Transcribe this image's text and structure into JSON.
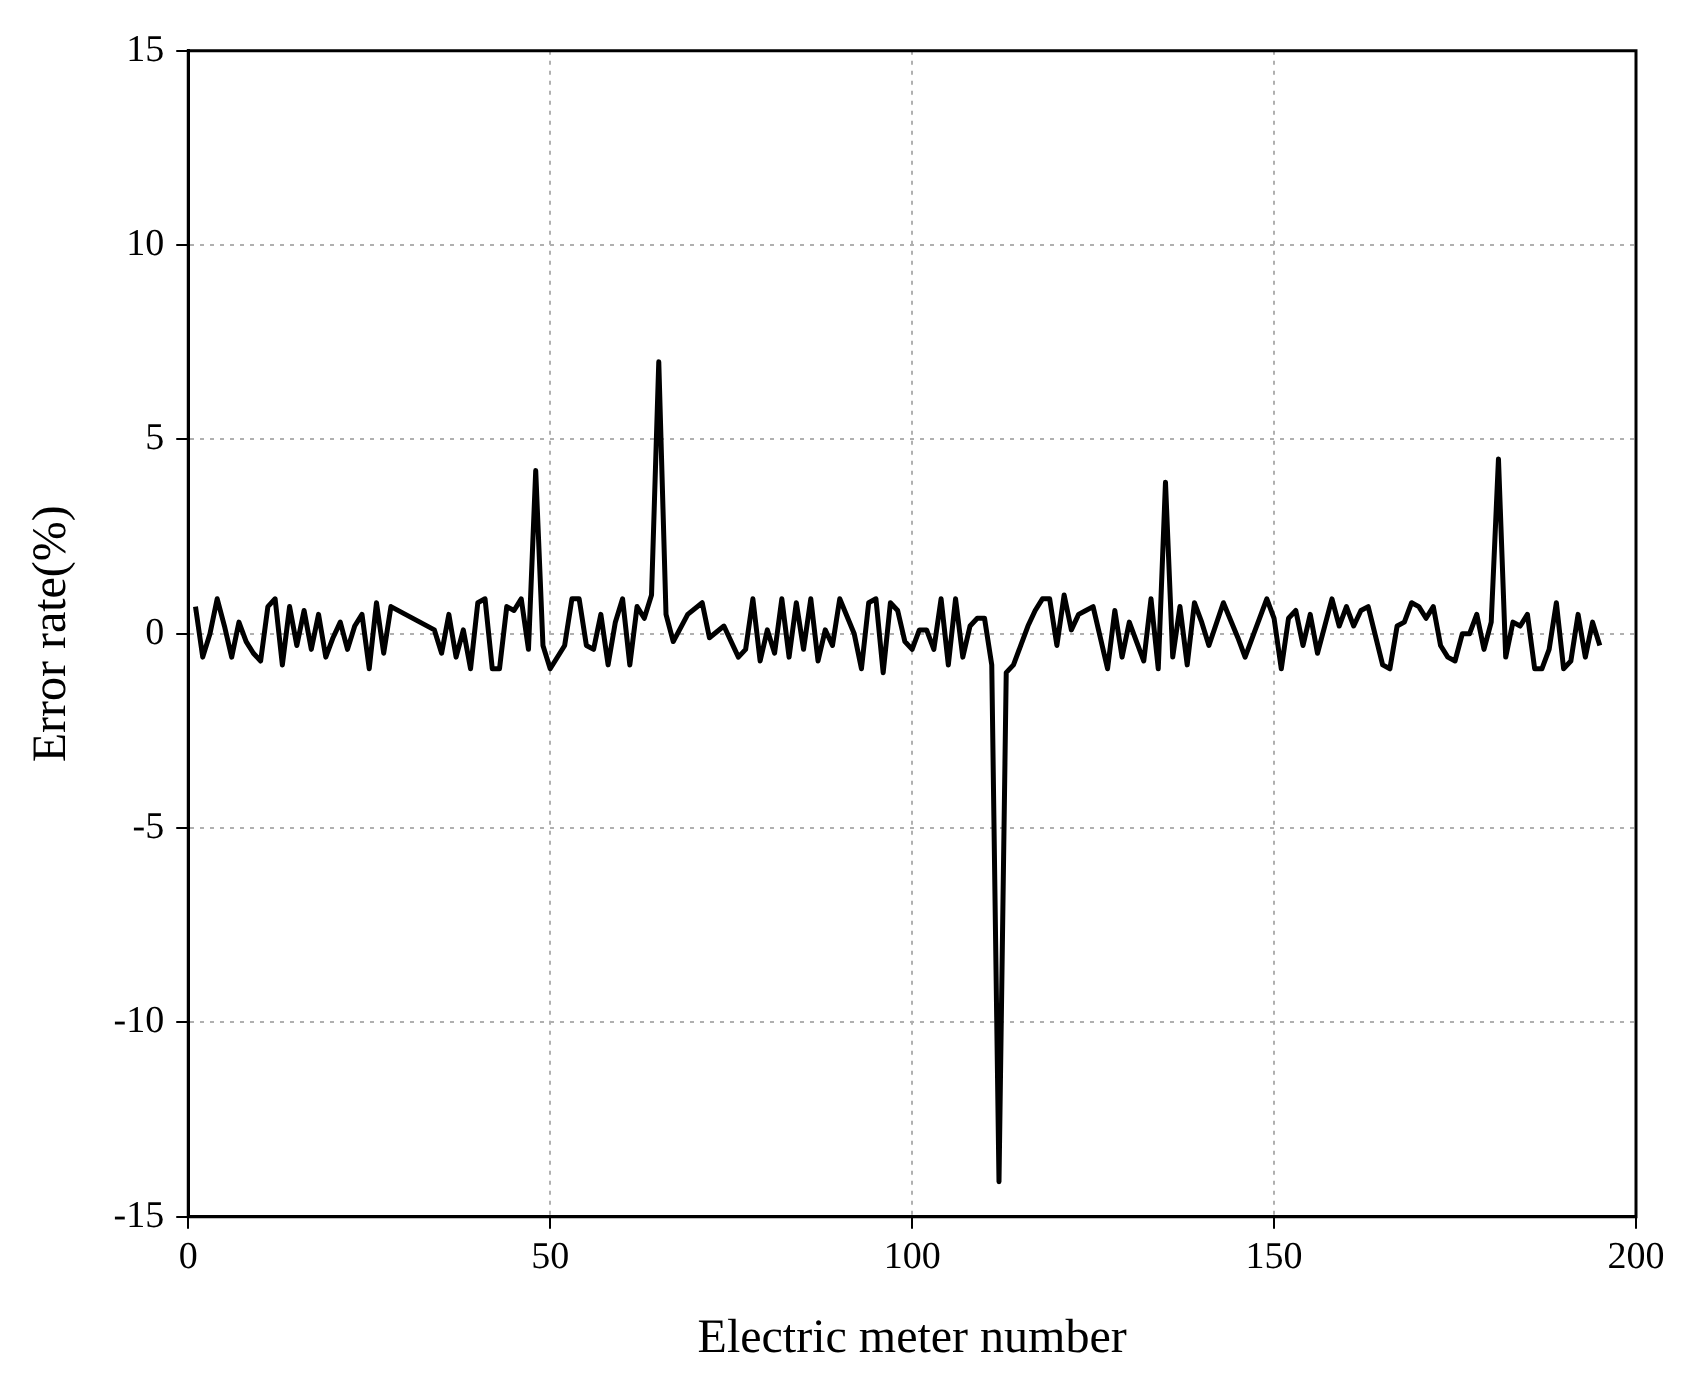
{
  "chart_data": {
    "type": "line",
    "xlabel": "Electric meter number",
    "ylabel": "Error rate(%)",
    "xlim": [
      0,
      200
    ],
    "xticks": [
      0,
      50,
      100,
      150,
      200
    ],
    "ylim": [
      -15,
      15
    ],
    "yticks": [
      -15,
      -10,
      -5,
      0,
      5,
      10,
      15
    ],
    "grid": true,
    "legend": false,
    "marker": "none",
    "line_style": "solid",
    "x": [
      1,
      2,
      3,
      4,
      5,
      6,
      7,
      8,
      9,
      10,
      11,
      12,
      13,
      14,
      15,
      16,
      17,
      18,
      19,
      20,
      21,
      22,
      23,
      24,
      25,
      26,
      27,
      28,
      30,
      32,
      34,
      35,
      36,
      37,
      38,
      39,
      40,
      41,
      42,
      43,
      44,
      45,
      46,
      47,
      48,
      49,
      50,
      52,
      53,
      54,
      55,
      56,
      57,
      58,
      59,
      60,
      61,
      62,
      63,
      64,
      65,
      66,
      67,
      69,
      71,
      72,
      74,
      76,
      77,
      78,
      79,
      80,
      81,
      82,
      83,
      84,
      85,
      86,
      87,
      88,
      89,
      90,
      92,
      93,
      94,
      95,
      96,
      97,
      98,
      99,
      100,
      101,
      102,
      103,
      104,
      105,
      106,
      107,
      108,
      109,
      110,
      111,
      112,
      113,
      114,
      116,
      117,
      118,
      119,
      120,
      121,
      122,
      123,
      124,
      125,
      126,
      127,
      128,
      129,
      130,
      131,
      132,
      133,
      134,
      135,
      136,
      137,
      138,
      139,
      140,
      141,
      143,
      145,
      146,
      147,
      149,
      150,
      151,
      152,
      153,
      154,
      155,
      156,
      157,
      158,
      159,
      160,
      161,
      162,
      163,
      165,
      166,
      167,
      168,
      169,
      170,
      171,
      172,
      173,
      174,
      175,
      176,
      177,
      178,
      179,
      180,
      181,
      182,
      183,
      184,
      185,
      186,
      187,
      188,
      189,
      190,
      191,
      192,
      193,
      194,
      195
    ],
    "series": [
      {
        "color": "#000000",
        "values": [
          0.7,
          -0.6,
          0,
          0.9,
          0.2,
          -0.6,
          0.3,
          -0.2,
          -0.5,
          -0.7,
          0.7,
          0.9,
          -0.8,
          0.7,
          -0.3,
          0.6,
          -0.4,
          0.5,
          -0.6,
          -0.1,
          0.3,
          -0.4,
          0.2,
          0.5,
          -0.9,
          0.8,
          -0.5,
          0.7,
          0.5,
          0.3,
          0.1,
          -0.5,
          0.5,
          -0.6,
          0.1,
          -0.9,
          0.8,
          0.9,
          -0.9,
          -0.9,
          0.7,
          0.6,
          0.9,
          -0.4,
          4.2,
          -0.3,
          -0.9,
          -0.3,
          0.9,
          0.9,
          -0.3,
          -0.4,
          0.5,
          -0.8,
          0.3,
          0.9,
          -0.8,
          0.7,
          0.4,
          1.0,
          7.0,
          0.5,
          -0.2,
          0.5,
          0.8,
          -0.1,
          0.2,
          -0.6,
          -0.4,
          0.9,
          -0.7,
          0.1,
          -0.5,
          0.9,
          -0.6,
          0.8,
          -0.4,
          0.9,
          -0.7,
          0.1,
          -0.3,
          0.9,
          0,
          -0.9,
          0.8,
          0.9,
          -1.0,
          0.8,
          0.6,
          -0.2,
          -0.4,
          0.1,
          0.1,
          -0.4,
          0.9,
          -0.8,
          0.9,
          -0.6,
          0.2,
          0.4,
          0.4,
          -0.8,
          -14.1,
          -1.0,
          -0.8,
          0.2,
          0.6,
          0.9,
          0.9,
          -0.3,
          1.0,
          0.1,
          0.5,
          0.6,
          0.7,
          -0.1,
          -0.9,
          0.6,
          -0.6,
          0.3,
          -0.2,
          -0.7,
          0.9,
          -0.9,
          3.9,
          -0.6,
          0.7,
          -0.8,
          0.8,
          0.3,
          -0.3,
          0.8,
          -0.1,
          -0.6,
          -0.1,
          0.9,
          0.4,
          -0.9,
          0.4,
          0.6,
          -0.3,
          0.5,
          -0.5,
          0.2,
          0.9,
          0.2,
          0.7,
          0.2,
          0.6,
          0.7,
          -0.8,
          -0.9,
          0.2,
          0.3,
          0.8,
          0.7,
          0.4,
          0.7,
          -0.3,
          -0.6,
          -0.7,
          0,
          0,
          0.5,
          -0.4,
          0.3,
          4.5,
          -0.6,
          0.3,
          0.2,
          0.5,
          -0.9,
          -0.9,
          -0.4,
          0.8,
          -0.9,
          -0.7,
          0.5,
          -0.6,
          0.3,
          -0.3
        ]
      }
    ]
  }
}
